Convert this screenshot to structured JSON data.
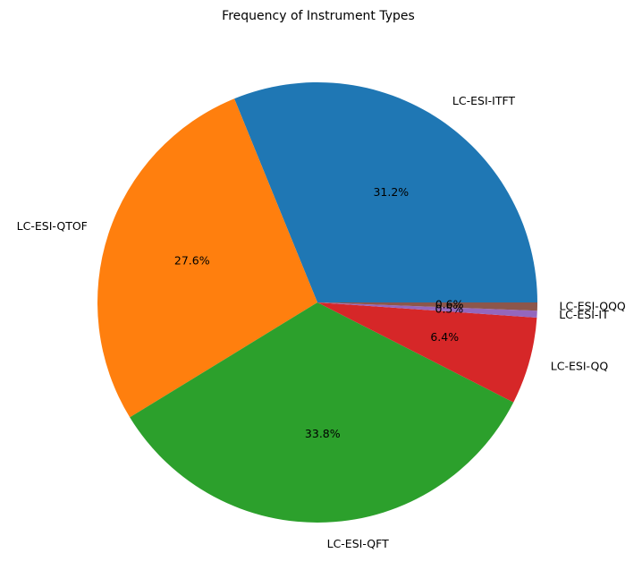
{
  "chart_data": {
    "type": "pie",
    "title": "Frequency of Instrument Types",
    "categories": [
      "LC-ESI-ITFT",
      "LC-ESI-QTOF",
      "LC-ESI-QFT",
      "LC-ESI-QQ",
      "LC-ESI-IT",
      "LC-ESI-QQQ"
    ],
    "values": [
      31.2,
      27.6,
      33.8,
      6.4,
      0.5,
      0.6
    ],
    "percent_labels": [
      "31.2%",
      "27.6%",
      "33.8%",
      "6.4%",
      "0.5%",
      "0.6%"
    ],
    "colors": [
      "#1f77b4",
      "#ff7f0e",
      "#2ca02c",
      "#d62728",
      "#9467bd",
      "#8c564b"
    ],
    "start_angle_deg": 0,
    "direction": "counterclockwise"
  }
}
